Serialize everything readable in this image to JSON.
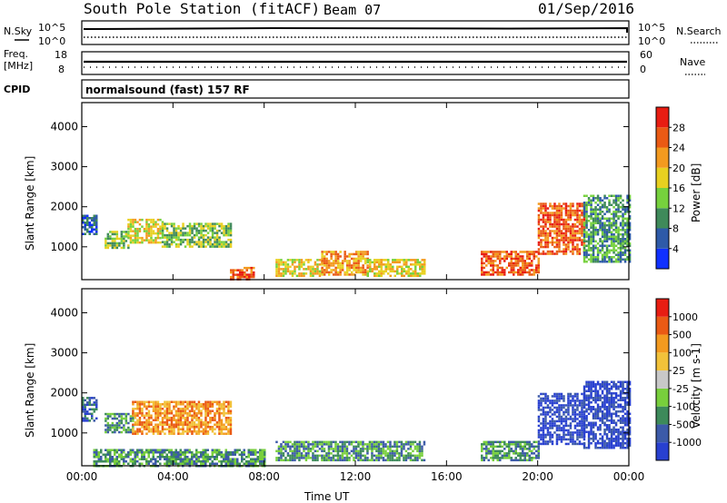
{
  "header": {
    "station": "South Pole Station (fitACF)",
    "beam": "Beam 07",
    "date": "01/Sep/2016"
  },
  "param_panels": {
    "nsky": {
      "label": "N.Sky",
      "ticks": [
        "10^5",
        "10^0"
      ]
    },
    "nsearch": {
      "label": "N.Search",
      "ticks": [
        "10^5",
        "10^0"
      ]
    },
    "freq": {
      "label_top": "Freq.",
      "label_bottom": "[MHz]",
      "ticks": [
        "18",
        "8"
      ]
    },
    "nave": {
      "label": "Nave",
      "ticks": [
        "60",
        "0"
      ]
    },
    "cpid": {
      "label": "CPID",
      "value": "normalsound (fast) 157 RF"
    }
  },
  "chart_data": [
    {
      "type": "heatmap",
      "name": "power",
      "xlabel": "Time UT",
      "ylabel": "Slant Range [km]",
      "x_ticks": [
        "00:00",
        "04:00",
        "08:00",
        "12:00",
        "16:00",
        "20:00",
        "00:00"
      ],
      "y_ticks": [
        "1000",
        "2000",
        "3000",
        "4000"
      ],
      "ylim": [
        180,
        4600
      ],
      "colorbar": {
        "label": "Power [dB]",
        "ticks": [
          "4",
          "8",
          "12",
          "16",
          "20",
          "24",
          "28"
        ],
        "colors": [
          "#1030ff",
          "#2e5aa8",
          "#3f8a5a",
          "#76d13d",
          "#e8d020",
          "#f39a1f",
          "#ea5a14",
          "#e81d12"
        ]
      },
      "echo_regions": [
        {
          "t_start": 0.0,
          "t_end": 0.6,
          "r_start": 1300,
          "r_end": 1800,
          "level": 1
        },
        {
          "t_start": 1.0,
          "t_end": 2.0,
          "r_start": 1000,
          "r_end": 1400,
          "level": 3
        },
        {
          "t_start": 2.0,
          "t_end": 3.5,
          "r_start": 1100,
          "r_end": 1700,
          "level": 4
        },
        {
          "t_start": 3.5,
          "t_end": 6.5,
          "r_start": 1000,
          "r_end": 1600,
          "level": 3
        },
        {
          "t_start": 6.5,
          "t_end": 7.5,
          "r_start": 200,
          "r_end": 500,
          "level": 6
        },
        {
          "t_start": 8.5,
          "t_end": 10.5,
          "r_start": 300,
          "r_end": 700,
          "level": 4
        },
        {
          "t_start": 10.5,
          "t_end": 12.5,
          "r_start": 300,
          "r_end": 900,
          "level": 5
        },
        {
          "t_start": 12.5,
          "t_end": 15.0,
          "r_start": 300,
          "r_end": 700,
          "level": 4
        },
        {
          "t_start": 17.5,
          "t_end": 20.0,
          "r_start": 300,
          "r_end": 900,
          "level": 6
        },
        {
          "t_start": 20.0,
          "t_end": 22.0,
          "r_start": 800,
          "r_end": 2100,
          "level": 6
        },
        {
          "t_start": 22.0,
          "t_end": 24.0,
          "r_start": 600,
          "r_end": 2300,
          "level": 2
        }
      ]
    },
    {
      "type": "heatmap",
      "name": "velocity",
      "xlabel": "Time UT",
      "ylabel": "Slant Range [km]",
      "x_ticks": [
        "00:00",
        "04:00",
        "08:00",
        "12:00",
        "16:00",
        "20:00",
        "00:00"
      ],
      "y_ticks": [
        "1000",
        "2000",
        "3000",
        "4000"
      ],
      "ylim": [
        180,
        4600
      ],
      "colorbar": {
        "label": "Velocity [m s-1]",
        "ticks": [
          "1000",
          "500",
          "100",
          "25",
          "-25",
          "-100",
          "-500",
          "-1000"
        ],
        "colors": [
          "#2840d0",
          "#3c5aa8",
          "#3d8a5a",
          "#78cf3c",
          "#c8c8c8",
          "#f2c23a",
          "#f39a1f",
          "#ea5a14",
          "#e81d12"
        ]
      },
      "echo_regions": [
        {
          "t_start": 0.0,
          "t_end": 0.6,
          "r_start": 1300,
          "r_end": 1900,
          "level": 1
        },
        {
          "t_start": 1.0,
          "t_end": 2.2,
          "r_start": 1000,
          "r_end": 1500,
          "level": 2
        },
        {
          "t_start": 2.2,
          "t_end": 6.5,
          "r_start": 1000,
          "r_end": 1800,
          "level": 6
        },
        {
          "t_start": 0.5,
          "t_end": 8.0,
          "r_start": 200,
          "r_end": 600,
          "level": 2
        },
        {
          "t_start": 8.5,
          "t_end": 15.0,
          "r_start": 300,
          "r_end": 800,
          "level": 2
        },
        {
          "t_start": 17.5,
          "t_end": 20.0,
          "r_start": 300,
          "r_end": 800,
          "level": 2
        },
        {
          "t_start": 20.0,
          "t_end": 22.0,
          "r_start": 700,
          "r_end": 2000,
          "level": 0
        },
        {
          "t_start": 22.0,
          "t_end": 24.0,
          "r_start": 600,
          "r_end": 2300,
          "level": 0
        }
      ]
    }
  ]
}
